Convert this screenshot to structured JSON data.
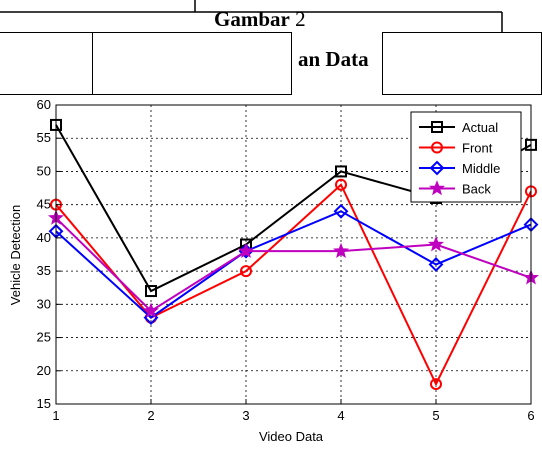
{
  "header": {
    "caption_label": "Gambar",
    "caption_number": "2",
    "caption_partial": "an Data"
  },
  "chart_data": {
    "type": "line",
    "title": "",
    "xlabel": "Video Data",
    "ylabel": "Vehicle Detection",
    "x": [
      1,
      2,
      3,
      4,
      5,
      6
    ],
    "xlim": [
      1,
      6
    ],
    "ylim": [
      15,
      60
    ],
    "xticks": [
      "1",
      "2",
      "3",
      "4",
      "5",
      "6"
    ],
    "yticks": [
      "15",
      "20",
      "25",
      "30",
      "35",
      "40",
      "45",
      "50",
      "55",
      "60"
    ],
    "grid": true,
    "legend_position": "top-right",
    "series": [
      {
        "name": "Actual",
        "color": "#000000",
        "marker": "square",
        "values": [
          57,
          32,
          39,
          50,
          46,
          54
        ]
      },
      {
        "name": "Front",
        "color": "#ff0000",
        "marker": "circle",
        "values": [
          45,
          28,
          35,
          48,
          18,
          47
        ]
      },
      {
        "name": "Middle",
        "color": "#0000ff",
        "marker": "diamond",
        "values": [
          41,
          28,
          38,
          44,
          36,
          42
        ]
      },
      {
        "name": "Back",
        "color": "#bf00bf",
        "marker": "star",
        "values": [
          43,
          29,
          38,
          38,
          39,
          34
        ]
      }
    ]
  }
}
